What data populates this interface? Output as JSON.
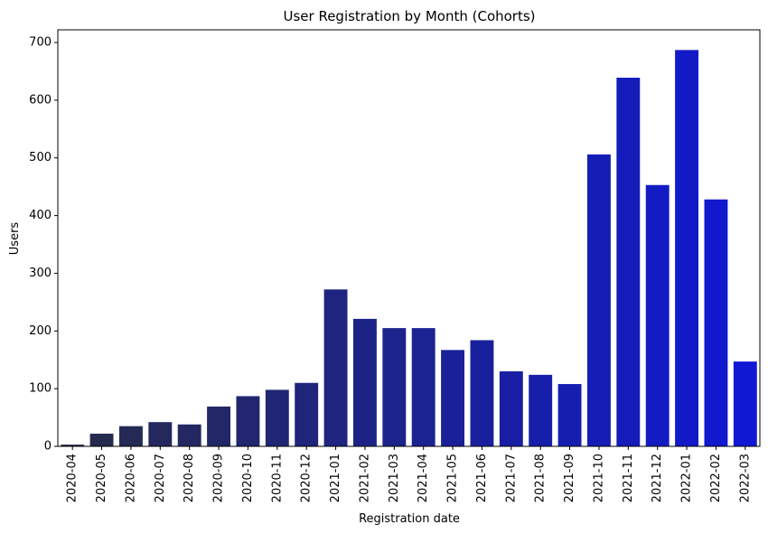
{
  "chart_data": {
    "type": "bar",
    "title": "User Registration by Month (Cohorts)",
    "xlabel": "Registration date",
    "ylabel": "Users",
    "ylim": [
      0,
      722
    ],
    "yticks": [
      "0",
      "100",
      "200",
      "300",
      "400",
      "500",
      "600",
      "700"
    ],
    "grid": false,
    "legend": "none",
    "categories": [
      "2020-04",
      "2020-05",
      "2020-06",
      "2020-07",
      "2020-08",
      "2020-09",
      "2020-10",
      "2020-11",
      "2020-12",
      "2021-01",
      "2021-02",
      "2021-03",
      "2021-04",
      "2021-05",
      "2021-06",
      "2021-07",
      "2021-08",
      "2021-09",
      "2021-10",
      "2021-11",
      "2021-12",
      "2022-01",
      "2022-02",
      "2022-03"
    ],
    "values": [
      3,
      22,
      35,
      42,
      38,
      69,
      87,
      98,
      110,
      272,
      221,
      205,
      205,
      167,
      184,
      130,
      124,
      108,
      506,
      639,
      453,
      687,
      428,
      147
    ],
    "colors": [
      "#272a49",
      "#262a4f",
      "#252955",
      "#24285c",
      "#232862",
      "#222768",
      "#21266e",
      "#202674",
      "#1f257a",
      "#1e2480",
      "#1d2386",
      "#1c238c",
      "#1b2292",
      "#1a2198",
      "#19209e",
      "#181fa4",
      "#171eaa",
      "#161eb0",
      "#151db6",
      "#141cbc",
      "#131bc2",
      "#121ac8",
      "#1119ce",
      "#1018d4"
    ]
  }
}
